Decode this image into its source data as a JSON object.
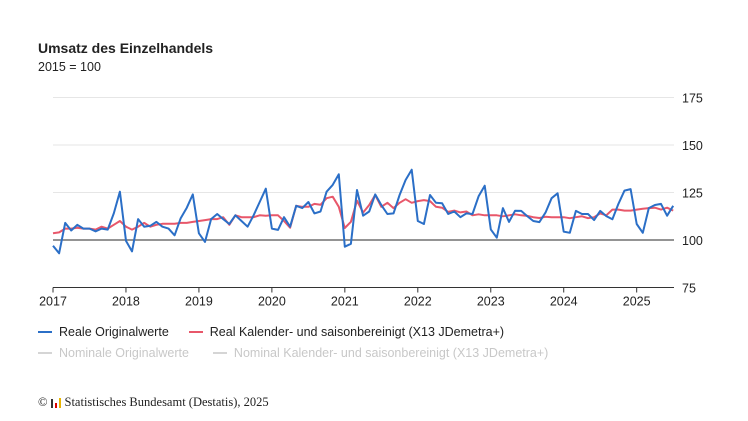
{
  "chart_data": {
    "type": "line",
    "title": "Umsatz des Einzelhandels",
    "subtitle": "2015 = 100",
    "x_start": "2017-01",
    "x_frequency": "monthly",
    "x_end": "2025-07",
    "xticks": [
      "2017",
      "2018",
      "2019",
      "2020",
      "2021",
      "2022",
      "2023",
      "2024",
      "2025"
    ],
    "yticks": [
      75,
      100,
      125,
      150,
      175
    ],
    "ylim": [
      75,
      175
    ],
    "reference_line": 100,
    "y_axis_position": "right",
    "grid": true,
    "legend_position": "bottom",
    "series": [
      {
        "name": "Reale Originalwerte",
        "color": "#2b6fc7",
        "active": true,
        "values": [
          97,
          93,
          109,
          105,
          108,
          106,
          106,
          104.5,
          106,
          105.5,
          114,
          125.4,
          99.5,
          94,
          111,
          107,
          107.5,
          109.5,
          107,
          106,
          102.5,
          111.5,
          117,
          124,
          103.5,
          99,
          111,
          113.7,
          111,
          108.4,
          113,
          110,
          107,
          113,
          120,
          127,
          106,
          105.3,
          112,
          107,
          118,
          116.8,
          120,
          114,
          115,
          125.4,
          129,
          134.6,
          96.5,
          98,
          126.3,
          112.8,
          115,
          124,
          118.4,
          113.7,
          114,
          123.7,
          131.6,
          137,
          110,
          108.4,
          123.7,
          119.6,
          119.3,
          113.7,
          115,
          112,
          114,
          113.7,
          123,
          128.6,
          105.6,
          101.2,
          116.8,
          109.5,
          115.4,
          115.3,
          112.6,
          110,
          109.4,
          114.4,
          122,
          124.6,
          104.4,
          103.8,
          115.3,
          113.7,
          113.7,
          110.5,
          115.3,
          112.6,
          110.9,
          119,
          126,
          126.8,
          108.4,
          103.8,
          116.8,
          118.4,
          119,
          112.8,
          118
        ]
      },
      {
        "name": "Real Kalender- und saisonbereinigt (X13 JDemetra+)",
        "color": "#e8576a",
        "active": true,
        "values": [
          103.5,
          104,
          106,
          106,
          106.5,
          106,
          106,
          105.5,
          107,
          106,
          108,
          110,
          107,
          105.5,
          107,
          109,
          107,
          108,
          108.5,
          108.5,
          108.5,
          109,
          109,
          109.5,
          110,
          110.5,
          111,
          111,
          112,
          108,
          113,
          112,
          112,
          112,
          113,
          112.8,
          113,
          113,
          110,
          106.5,
          118,
          117.5,
          117.5,
          119,
          118.5,
          122,
          122.8,
          117.5,
          106.3,
          109.6,
          120.7,
          114.4,
          118.4,
          123.7,
          117.5,
          119.6,
          116.8,
          119.6,
          121.5,
          119.6,
          120.5,
          121,
          120.5,
          117.5,
          117,
          114.8,
          115.5,
          114.5,
          115,
          113,
          113.5,
          113,
          113,
          113,
          112.5,
          113,
          113.5,
          113,
          112.7,
          112,
          111.6,
          112.2,
          112,
          112,
          112,
          111.5,
          112,
          112.5,
          111.5,
          112,
          114,
          113,
          116,
          116,
          115.5,
          115.5,
          116,
          116.5,
          116.8,
          117,
          116,
          117,
          115.5
        ]
      },
      {
        "name": "Nominale Originalwerte",
        "color": "#cccccc",
        "active": false,
        "values": []
      },
      {
        "name": "Nominal Kalender- und saisonbereinigt (X13 JDemetra+)",
        "color": "#cccccc",
        "active": false,
        "values": []
      }
    ]
  },
  "footer": {
    "text": "Statistisches Bundesamt (Destatis), 2025",
    "copyright": "©"
  }
}
